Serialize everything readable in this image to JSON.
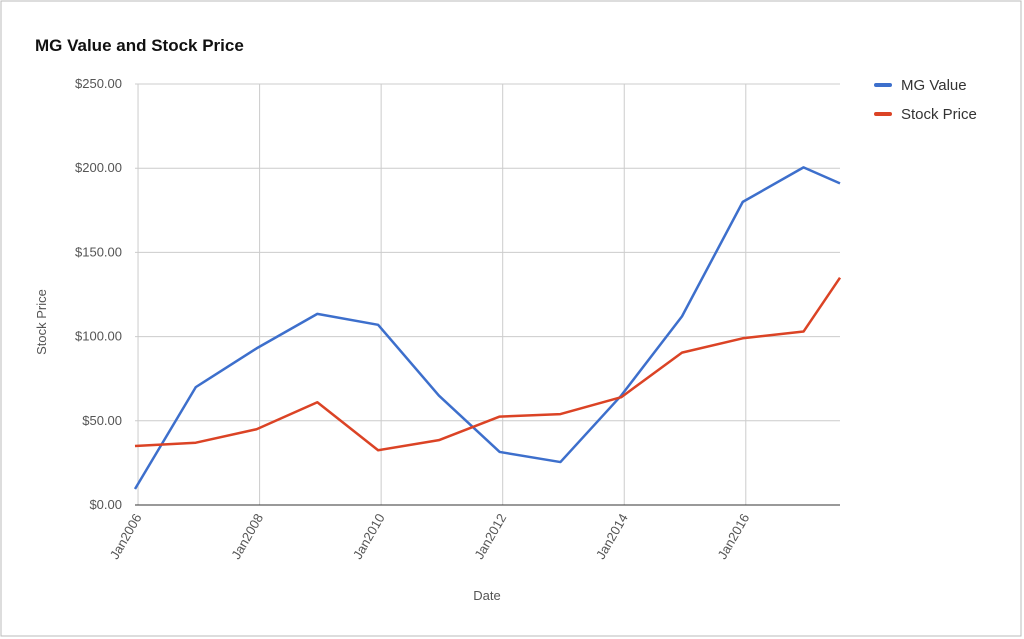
{
  "chart_data": {
    "type": "line",
    "title": "MG Value and Stock Price",
    "x_label": "Date",
    "y_label": "Stock Price",
    "x": [
      2005.95,
      2006.95,
      2007.95,
      2008.95,
      2009.95,
      2010.95,
      2011.95,
      2012.95,
      2013.95,
      2014.95,
      2015.95,
      2016.95,
      2017.55
    ],
    "series": [
      {
        "name": "MG Value",
        "color": "#3d6fcc",
        "values": [
          9.5,
          70,
          93,
          113.5,
          107,
          65,
          31.5,
          25.5,
          65,
          112,
          180,
          200.5,
          191
        ]
      },
      {
        "name": "Stock Price",
        "color": "#db4325",
        "values": [
          35,
          37,
          45,
          61,
          32.5,
          38.5,
          52.5,
          54,
          64,
          90.5,
          99,
          103,
          135
        ]
      }
    ],
    "xlim": [
      2005.95,
      2017.55
    ],
    "xticks": [
      {
        "value": 2006,
        "label": "Jan2006"
      },
      {
        "value": 2008,
        "label": "Jan2008"
      },
      {
        "value": 2010,
        "label": "Jan2010"
      },
      {
        "value": 2012,
        "label": "Jan2012"
      },
      {
        "value": 2014,
        "label": "Jan2014"
      },
      {
        "value": 2016,
        "label": "Jan2016"
      }
    ],
    "ylim": [
      0,
      250
    ],
    "yticks": [
      {
        "value": 0,
        "label": "$0.00"
      },
      {
        "value": 50,
        "label": "$50.00"
      },
      {
        "value": 100,
        "label": "$100.00"
      },
      {
        "value": 150,
        "label": "$150.00"
      },
      {
        "value": 200,
        "label": "$200.00"
      },
      {
        "value": 250,
        "label": "$250.00"
      }
    ],
    "grid": true,
    "legend": "right"
  }
}
